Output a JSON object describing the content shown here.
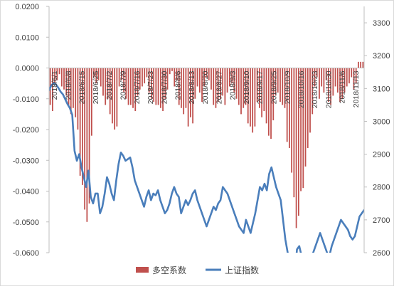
{
  "chart_data": {
    "type": "bar",
    "title": "",
    "grid": false,
    "legend_position": "bottom",
    "left_axis": {
      "min": -0.06,
      "max": 0.02,
      "ticks": [
        "0.0200",
        "0.0100",
        "0.0000",
        "-0.0100",
        "-0.0200",
        "-0.0300",
        "-0.0400",
        "-0.0500",
        "-0.0600"
      ]
    },
    "right_axis": {
      "min": 2600,
      "max": 3350,
      "ticks": [
        "3300",
        "3200",
        "3100",
        "3000",
        "2900",
        "2800",
        "2700",
        "2600"
      ]
    },
    "x_tick_labels": [
      "2018/6/1",
      "2018/6/8",
      "2018/6/15",
      "2018/6/25",
      "2018/7/2",
      "2018/7/9",
      "2018/7/16",
      "2018/7/23",
      "2018/7/30",
      "2018/8/6",
      "2018/8/13",
      "2018/8/20",
      "2018/8/27",
      "2018/9/3",
      "2018/9/10",
      "2018/9/17",
      "2018/9/25",
      "2018/10/9",
      "2018/10/16",
      "2018/10/23",
      "2018/10/30",
      "2018/11/6",
      "2018/11/13"
    ],
    "series": [
      {
        "name": "多空系数",
        "kind": "bar",
        "axis": "left",
        "color": "#c0504d",
        "values": [
          -0.012,
          -0.014,
          -0.005,
          -0.004,
          -0.002,
          -0.006,
          -0.007,
          -0.009,
          -0.012,
          -0.015,
          -0.013,
          -0.016,
          -0.02,
          -0.035,
          -0.038,
          -0.046,
          -0.05,
          -0.044,
          -0.022,
          -0.003,
          -0.005,
          -0.004,
          -0.006,
          -0.009,
          -0.012,
          -0.01,
          -0.015,
          -0.018,
          -0.02,
          -0.019,
          -0.006,
          -0.004,
          -0.008,
          -0.01,
          -0.012,
          -0.012,
          -0.013,
          -0.014,
          -0.009,
          -0.007,
          -0.006,
          -0.005,
          -0.003,
          -0.008,
          -0.01,
          -0.011,
          -0.012,
          -0.012,
          -0.013,
          -0.014,
          -0.01,
          -0.007,
          -0.002,
          -0.001,
          -0.006,
          -0.004,
          -0.012,
          -0.013,
          -0.015,
          -0.013,
          -0.019,
          -0.016,
          -0.018,
          -0.01,
          -0.006,
          -0.008,
          -0.011,
          -0.006,
          -0.003,
          -0.004,
          -0.007,
          -0.012,
          -0.013,
          -0.011,
          -0.01,
          -0.009,
          -0.012,
          -0.008,
          -0.006,
          -0.005,
          -0.008,
          -0.01,
          -0.012,
          -0.015,
          -0.013,
          -0.012,
          -0.018,
          -0.019,
          -0.021,
          -0.019,
          -0.011,
          -0.013,
          -0.016,
          -0.014,
          -0.018,
          -0.022,
          -0.023,
          -0.017,
          -0.009,
          -0.008,
          -0.011,
          -0.012,
          -0.013,
          -0.024,
          -0.026,
          -0.034,
          -0.042,
          -0.052,
          -0.048,
          -0.04,
          -0.039,
          -0.032,
          -0.026,
          -0.021,
          -0.015,
          -0.006,
          -0.003,
          -0.01,
          -0.006,
          -0.008,
          -0.004,
          -0.011,
          -0.012,
          -0.009,
          -0.006,
          -0.008,
          -0.011,
          -0.01,
          -0.008,
          -0.006,
          -0.005,
          -0.003,
          -0.007,
          -0.005,
          0.002,
          0.002,
          0.002
        ]
      },
      {
        "name": "上证指数",
        "kind": "line",
        "axis": "right",
        "color": "#4a7ebb",
        "values": [
          3095,
          3110,
          3116,
          3112,
          3102,
          3090,
          3082,
          3067,
          3052,
          3040,
          3020,
          2910,
          2880,
          2900,
          2860,
          2830,
          2800,
          2850,
          2770,
          2750,
          2780,
          2780,
          2720,
          2740,
          2780,
          2830,
          2810,
          2780,
          2760,
          2820,
          2870,
          2905,
          2895,
          2880,
          2885,
          2890,
          2860,
          2820,
          2800,
          2780,
          2760,
          2740,
          2770,
          2790,
          2760,
          2780,
          2775,
          2790,
          2760,
          2740,
          2720,
          2730,
          2750,
          2780,
          2800,
          2780,
          2770,
          2720,
          2740,
          2760,
          2745,
          2760,
          2780,
          2790,
          2760,
          2740,
          2720,
          2700,
          2680,
          2700,
          2720,
          2740,
          2730,
          2750,
          2760,
          2800,
          2790,
          2780,
          2760,
          2740,
          2720,
          2700,
          2680,
          2670,
          2660,
          2700,
          2680,
          2660,
          2690,
          2720,
          2760,
          2800,
          2790,
          2810,
          2790,
          2840,
          2860,
          2830,
          2800,
          2780,
          2760,
          2700,
          2640,
          2600,
          2560,
          2500,
          2520,
          2610,
          2620,
          2590,
          2560,
          2520,
          2540,
          2580,
          2600,
          2620,
          2640,
          2660,
          2640,
          2620,
          2600,
          2590,
          2620,
          2640,
          2660,
          2680,
          2700,
          2690,
          2680,
          2670,
          2650,
          2640,
          2650,
          2680,
          2710,
          2720,
          2730
        ]
      }
    ]
  }
}
